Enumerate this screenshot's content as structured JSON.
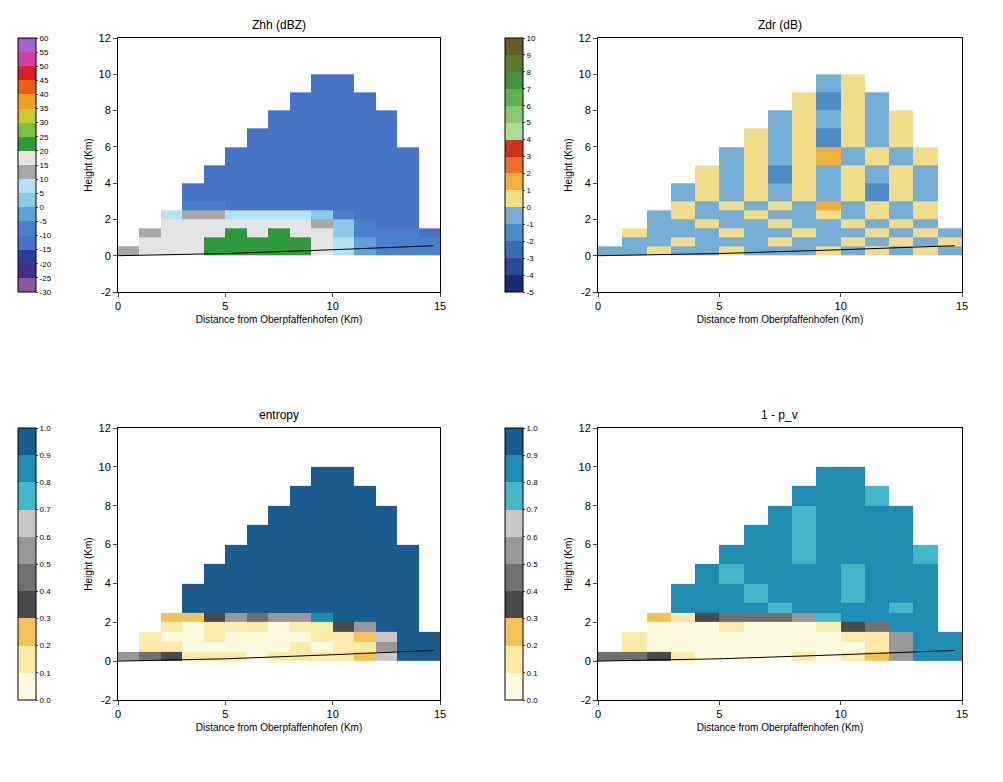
{
  "chart_data": [
    {
      "type": "heatmap",
      "title": "Zhh (dBZ)",
      "x_label": "Distance from Oberpfaffenhofen (Km)",
      "y_label": "Height (Km)",
      "xlim": [
        0,
        15
      ],
      "xticks": [
        0,
        5,
        10,
        15
      ],
      "ylim": [
        -2,
        12
      ],
      "yticks": [
        -2,
        0,
        2,
        4,
        6,
        8,
        10,
        12
      ],
      "x_edges": [
        0,
        1,
        2,
        3,
        4,
        5,
        6,
        7,
        8,
        9,
        10,
        11,
        12,
        13,
        14,
        15
      ],
      "y_edges": [
        0,
        0.5,
        1,
        1.5,
        2,
        2.5,
        3,
        4,
        5,
        6,
        7,
        8,
        9,
        10
      ],
      "cells": [
        [
          12,
          15,
          16,
          17,
          20,
          21,
          22,
          21,
          22,
          18,
          5,
          -5,
          -8,
          -10,
          -10
        ],
        [
          null,
          15,
          16,
          18,
          21,
          22,
          22,
          22,
          21,
          18,
          5,
          -5,
          -8,
          -10,
          -10
        ],
        [
          null,
          14,
          16,
          17,
          18,
          21,
          19,
          21,
          18,
          15,
          3,
          -8,
          -10,
          -10,
          -12
        ],
        [
          null,
          null,
          15,
          16,
          17,
          17,
          16,
          17,
          16,
          12,
          0,
          -10,
          -12,
          -12,
          null
        ],
        [
          null,
          null,
          8,
          12,
          10,
          8,
          9,
          8,
          7,
          2,
          -10,
          -12,
          -12,
          -12,
          null
        ],
        [
          null,
          null,
          null,
          -8,
          -10,
          -12,
          -12,
          -12,
          -12,
          -12,
          -13,
          -13,
          -13,
          -13,
          null
        ],
        [
          null,
          null,
          null,
          -12,
          -12,
          -13,
          -13,
          -13,
          -13,
          -13,
          -13,
          -13,
          -13,
          -13,
          null
        ],
        [
          null,
          null,
          null,
          null,
          -13,
          -13,
          -13,
          -13,
          -13,
          -13,
          -13,
          -13,
          -13,
          -13,
          null
        ],
        [
          null,
          null,
          null,
          null,
          null,
          -13,
          -13,
          -13,
          -13,
          -13,
          -13,
          -13,
          -13,
          -13,
          null
        ],
        [
          null,
          null,
          null,
          null,
          null,
          null,
          -13,
          -13,
          -13,
          -13,
          -13,
          -13,
          -13,
          null,
          null
        ],
        [
          null,
          null,
          null,
          null,
          null,
          null,
          null,
          -13,
          -13,
          -13,
          -13,
          -13,
          -13,
          null,
          null
        ],
        [
          null,
          null,
          null,
          null,
          null,
          null,
          null,
          null,
          -13,
          -13,
          -13,
          -13,
          null,
          null,
          null
        ],
        [
          null,
          null,
          null,
          null,
          null,
          null,
          null,
          null,
          null,
          -13,
          -13,
          null,
          null,
          null,
          null
        ]
      ],
      "colorbar": {
        "range": [
          -30,
          60
        ],
        "ticks": [
          -30,
          -25,
          -20,
          -15,
          -10,
          -5,
          0,
          5,
          10,
          15,
          20,
          25,
          30,
          35,
          40,
          45,
          50,
          55,
          60
        ]
      },
      "ground_line": {
        "x": [
          0,
          5,
          10,
          14.7
        ],
        "y": [
          0,
          0.12,
          0.33,
          0.55
        ]
      }
    },
    {
      "type": "heatmap",
      "title": "Zdr (dB)",
      "x_label": "Distance from Oberpfaffenhofen (Km)",
      "y_label": "Height (Km)",
      "xlim": [
        0,
        15
      ],
      "xticks": [
        0,
        5,
        10,
        15
      ],
      "ylim": [
        -2,
        12
      ],
      "yticks": [
        -2,
        0,
        2,
        4,
        6,
        8,
        10,
        12
      ],
      "x_edges": [
        0,
        1,
        2,
        3,
        4,
        5,
        6,
        7,
        8,
        9,
        10,
        11,
        12,
        13,
        14,
        15
      ],
      "y_edges": [
        0,
        0.5,
        1,
        1.5,
        2,
        2.5,
        3,
        4,
        5,
        6,
        7,
        8,
        9,
        10
      ],
      "cells": [
        [
          -0.5,
          -0.4,
          0.3,
          -0.6,
          -0.5,
          0.4,
          -0.5,
          -0.3,
          -0.6,
          0.5,
          -0.4,
          0.6,
          -0.5,
          0.4,
          -0.3
        ],
        [
          null,
          -0.5,
          -0.6,
          0.4,
          -0.5,
          -0.4,
          -0.6,
          0.3,
          -0.5,
          -0.4,
          0.5,
          -0.6,
          0.7,
          -0.4,
          0.5
        ],
        [
          null,
          0.4,
          -0.5,
          -0.6,
          -0.3,
          0.5,
          -0.5,
          -0.6,
          0.4,
          -0.5,
          -0.3,
          0.6,
          -0.5,
          0.8,
          -0.4
        ],
        [
          null,
          null,
          -0.6,
          -0.4,
          0.5,
          -0.5,
          -0.6,
          0.3,
          -0.5,
          -0.4,
          0.6,
          -0.5,
          0.5,
          -0.6,
          null
        ],
        [
          null,
          null,
          -0.4,
          0.6,
          -0.5,
          -0.4,
          0.5,
          -0.6,
          -0.5,
          0.4,
          -0.3,
          0.7,
          -0.5,
          0.4,
          null
        ],
        [
          null,
          null,
          null,
          0.5,
          -0.6,
          0.4,
          -0.5,
          0.6,
          -0.4,
          1.5,
          -0.5,
          0.6,
          -0.4,
          0.5,
          null
        ],
        [
          null,
          null,
          null,
          -0.5,
          0.6,
          -0.4,
          0.5,
          -0.7,
          0.4,
          -0.5,
          0.6,
          -1.3,
          0.5,
          -0.4,
          null
        ],
        [
          null,
          null,
          null,
          null,
          0.5,
          -0.5,
          0.6,
          -1.2,
          0.4,
          -0.5,
          0.7,
          -0.4,
          0.5,
          -0.6,
          null
        ],
        [
          null,
          null,
          null,
          null,
          null,
          -0.4,
          0.5,
          -0.6,
          0.4,
          1.4,
          -0.5,
          0.6,
          -0.5,
          0.4,
          null
        ],
        [
          null,
          null,
          null,
          null,
          null,
          null,
          0.6,
          -0.5,
          0.4,
          -1.4,
          0.5,
          -0.4,
          0.6,
          null,
          null
        ],
        [
          null,
          null,
          null,
          null,
          null,
          null,
          null,
          -0.5,
          0.5,
          -0.6,
          0.4,
          -0.5,
          0.6,
          null,
          null
        ],
        [
          null,
          null,
          null,
          null,
          null,
          null,
          null,
          null,
          0.5,
          -1.3,
          0.6,
          -0.4,
          null,
          null,
          null
        ],
        [
          null,
          null,
          null,
          null,
          null,
          null,
          null,
          null,
          null,
          -0.5,
          0.5,
          null,
          null,
          null,
          null
        ]
      ],
      "colorbar": {
        "range": [
          -5,
          10
        ],
        "ticks": [
          -5,
          -4,
          -3,
          -2,
          -1,
          0,
          1,
          2,
          3,
          4,
          5,
          6,
          7,
          8,
          9,
          10
        ]
      },
      "ground_line": {
        "x": [
          0,
          5,
          10,
          14.7
        ],
        "y": [
          0,
          0.12,
          0.33,
          0.55
        ]
      }
    },
    {
      "type": "heatmap",
      "title": "entropy",
      "x_label": "Distance from Oberpfaffenhofen (Km)",
      "y_label": "Height (Km)",
      "xlim": [
        0,
        15
      ],
      "xticks": [
        0,
        5,
        10,
        15
      ],
      "ylim": [
        -2,
        12
      ],
      "yticks": [
        -2,
        0,
        2,
        4,
        6,
        8,
        10,
        12
      ],
      "x_edges": [
        0,
        1,
        2,
        3,
        4,
        5,
        6,
        7,
        8,
        9,
        10,
        11,
        12,
        13,
        14,
        15
      ],
      "y_edges": [
        0,
        0.5,
        1,
        1.5,
        2,
        2.5,
        3,
        4,
        5,
        6,
        7,
        8,
        9,
        10
      ],
      "cells": [
        [
          0.5,
          0.45,
          0.35,
          0.15,
          0.1,
          0.1,
          0.08,
          0.1,
          0.12,
          0.1,
          0.15,
          0.2,
          0.6,
          0.95,
          0.95
        ],
        [
          null,
          0.15,
          0.1,
          0.08,
          0.07,
          0.08,
          0.06,
          0.08,
          0.1,
          0.08,
          0.1,
          0.15,
          0.55,
          0.95,
          0.95
        ],
        [
          null,
          0.12,
          0.08,
          0.08,
          0.1,
          0.07,
          0.08,
          0.06,
          0.08,
          0.1,
          0.12,
          0.2,
          0.6,
          0.95,
          0.95
        ],
        [
          null,
          null,
          0.1,
          0.08,
          0.1,
          0.12,
          0.1,
          0.08,
          0.1,
          0.15,
          0.35,
          0.5,
          0.95,
          0.95,
          null
        ],
        [
          null,
          null,
          0.25,
          0.2,
          0.35,
          0.5,
          0.45,
          0.5,
          0.55,
          0.8,
          0.95,
          0.95,
          0.95,
          0.95,
          null
        ],
        [
          null,
          null,
          null,
          0.9,
          0.95,
          0.95,
          0.95,
          0.95,
          0.95,
          0.95,
          0.95,
          0.95,
          0.95,
          0.95,
          null
        ],
        [
          null,
          null,
          null,
          0.95,
          0.95,
          0.92,
          0.95,
          0.95,
          0.95,
          0.95,
          0.92,
          0.95,
          0.95,
          0.95,
          null
        ],
        [
          null,
          null,
          null,
          null,
          0.95,
          0.95,
          0.95,
          0.92,
          0.95,
          0.95,
          0.95,
          0.95,
          0.95,
          0.95,
          null
        ],
        [
          null,
          null,
          null,
          null,
          null,
          0.95,
          0.95,
          0.95,
          0.95,
          0.92,
          0.95,
          0.95,
          0.95,
          0.95,
          null
        ],
        [
          null,
          null,
          null,
          null,
          null,
          null,
          0.95,
          0.95,
          0.95,
          0.95,
          0.95,
          0.92,
          0.95,
          null,
          null
        ],
        [
          null,
          null,
          null,
          null,
          null,
          null,
          null,
          0.95,
          0.95,
          0.92,
          0.95,
          0.95,
          0.95,
          null,
          null
        ],
        [
          null,
          null,
          null,
          null,
          null,
          null,
          null,
          null,
          0.95,
          0.95,
          0.95,
          0.95,
          null,
          null,
          null
        ],
        [
          null,
          null,
          null,
          null,
          null,
          null,
          null,
          null,
          null,
          0.95,
          0.95,
          null,
          null,
          null,
          null
        ]
      ],
      "colorbar": {
        "range": [
          0,
          1
        ],
        "ticks": [
          {
            "value": 0,
            "label": "0.0"
          },
          0.1,
          0.2,
          0.3,
          0.4,
          0.5,
          0.6,
          0.7,
          0.8,
          0.9,
          {
            "value": 1,
            "label": "1.0"
          }
        ]
      },
      "ground_line": {
        "x": [
          0,
          5,
          10,
          14.7
        ],
        "y": [
          0,
          0.12,
          0.33,
          0.55
        ]
      }
    },
    {
      "type": "heatmap",
      "title": "1 - p_v",
      "x_label": "Distance from Oberpfaffenhofen (Km)",
      "y_label": "Height (Km)",
      "xlim": [
        0,
        15
      ],
      "xticks": [
        0,
        5,
        10,
        15
      ],
      "ylim": [
        -2,
        12
      ],
      "yticks": [
        -2,
        0,
        2,
        4,
        6,
        8,
        10,
        12
      ],
      "x_edges": [
        0,
        1,
        2,
        3,
        4,
        5,
        6,
        7,
        8,
        9,
        10,
        11,
        12,
        13,
        14,
        15
      ],
      "y_edges": [
        0,
        0.5,
        1,
        1.5,
        2,
        2.5,
        3,
        4,
        5,
        6,
        7,
        8,
        9,
        10
      ],
      "cells": [
        [
          0.45,
          0.4,
          0.3,
          0.12,
          0.08,
          0.08,
          0.06,
          0.08,
          0.1,
          0.08,
          0.12,
          0.2,
          0.55,
          0.85,
          0.8
        ],
        [
          null,
          0.12,
          0.08,
          0.06,
          0.06,
          0.07,
          0.05,
          0.06,
          0.08,
          0.07,
          0.08,
          0.12,
          0.5,
          0.85,
          0.8
        ],
        [
          null,
          0.1,
          0.07,
          0.07,
          0.08,
          0.06,
          0.07,
          0.05,
          0.07,
          0.08,
          0.1,
          0.18,
          0.55,
          0.82,
          0.85
        ],
        [
          null,
          null,
          0.08,
          0.07,
          0.08,
          0.1,
          0.08,
          0.07,
          0.08,
          0.12,
          0.3,
          0.45,
          0.85,
          0.8,
          null
        ],
        [
          null,
          null,
          0.2,
          0.18,
          0.3,
          0.45,
          0.4,
          0.45,
          0.5,
          0.75,
          0.85,
          0.8,
          0.85,
          0.85,
          null
        ],
        [
          null,
          null,
          null,
          0.85,
          0.8,
          0.85,
          0.85,
          0.75,
          0.85,
          0.8,
          0.85,
          0.85,
          0.75,
          0.85,
          null
        ],
        [
          null,
          null,
          null,
          0.8,
          0.85,
          0.85,
          0.75,
          0.85,
          0.8,
          0.85,
          0.75,
          0.85,
          0.8,
          0.85,
          null
        ],
        [
          null,
          null,
          null,
          null,
          0.85,
          0.75,
          0.85,
          0.8,
          0.85,
          0.85,
          0.75,
          0.85,
          0.8,
          0.85,
          null
        ],
        [
          null,
          null,
          null,
          null,
          null,
          0.85,
          0.8,
          0.85,
          0.75,
          0.85,
          0.8,
          0.85,
          0.85,
          0.75,
          null
        ],
        [
          null,
          null,
          null,
          null,
          null,
          null,
          0.8,
          0.85,
          0.75,
          0.85,
          0.8,
          0.85,
          0.85,
          null,
          null
        ],
        [
          null,
          null,
          null,
          null,
          null,
          null,
          null,
          0.85,
          0.75,
          0.85,
          0.8,
          0.85,
          0.8,
          null,
          null
        ],
        [
          null,
          null,
          null,
          null,
          null,
          null,
          null,
          null,
          0.8,
          0.85,
          0.85,
          0.75,
          null,
          null,
          null
        ],
        [
          null,
          null,
          null,
          null,
          null,
          null,
          null,
          null,
          null,
          0.85,
          0.8,
          null,
          null,
          null,
          null
        ]
      ],
      "colorbar": {
        "range": [
          0,
          1
        ],
        "ticks": [
          {
            "value": 0,
            "label": "0.0"
          },
          0.1,
          0.2,
          0.3,
          0.4,
          0.5,
          0.6,
          0.7,
          0.8,
          0.9,
          {
            "value": 1,
            "label": "1.0"
          }
        ]
      },
      "ground_line": {
        "x": [
          0,
          5,
          10,
          14.7
        ],
        "y": [
          0,
          0.12,
          0.33,
          0.55
        ]
      }
    }
  ]
}
